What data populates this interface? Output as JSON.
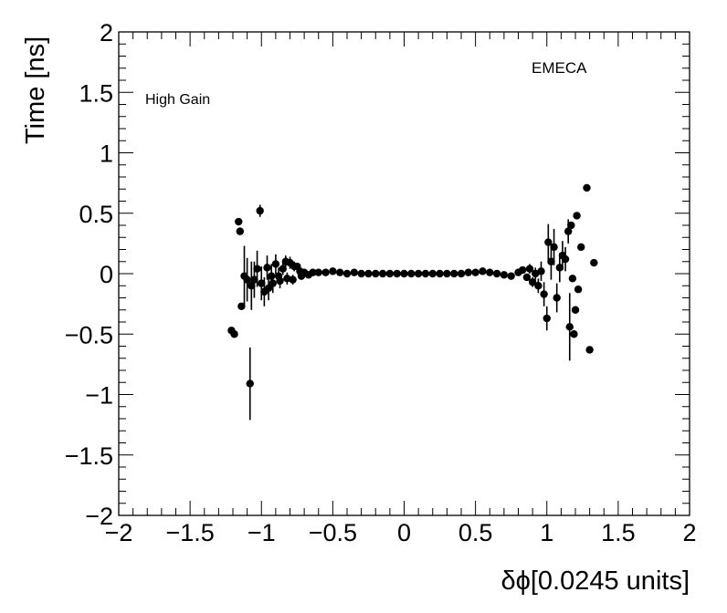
{
  "chart_data": {
    "type": "scatter",
    "title": "",
    "xlabel": "δϕ[0.0245 units]",
    "ylabel": "Time [ns]",
    "xlim": [
      -2,
      2
    ],
    "ylim": [
      -2,
      2
    ],
    "xticks": [
      -2,
      -1.5,
      -1,
      -0.5,
      0,
      0.5,
      1,
      1.5,
      2
    ],
    "yticks": [
      -2,
      -1.5,
      -1,
      -0.5,
      0,
      0.5,
      1,
      1.5,
      2
    ],
    "xtick_labels": [
      "−2",
      "−1.5",
      "−1",
      "−0.5",
      "0",
      "0.5",
      "1",
      "1.5",
      "2"
    ],
    "ytick_labels": [
      "−2",
      "−1.5",
      "−1",
      "−0.5",
      "0",
      "0.5",
      "1",
      "1.5",
      "2"
    ],
    "grid": false,
    "marker_color": "#000000",
    "annotations": {
      "label_left": "High Gain",
      "label_right": "EMECA"
    },
    "points": [
      {
        "x": -1.21,
        "y": -0.47,
        "err": 0.0
      },
      {
        "x": -1.19,
        "y": -0.5,
        "err": 0.0
      },
      {
        "x": -1.16,
        "y": 0.43,
        "err": 0.0
      },
      {
        "x": -1.15,
        "y": 0.35,
        "err": 0.0
      },
      {
        "x": -1.14,
        "y": -0.27,
        "err": 0.0
      },
      {
        "x": -1.12,
        "y": -0.02,
        "err": 0.25
      },
      {
        "x": -1.1,
        "y": -0.05,
        "err": 0.18
      },
      {
        "x": -1.08,
        "y": -0.91,
        "err": 0.3
      },
      {
        "x": -1.07,
        "y": -0.1,
        "err": 0.2
      },
      {
        "x": -1.05,
        "y": -0.05,
        "err": 0.15
      },
      {
        "x": -1.03,
        "y": 0.04,
        "err": 0.15
      },
      {
        "x": -1.01,
        "y": 0.52,
        "err": 0.05
      },
      {
        "x": -1.0,
        "y": -0.08,
        "err": 0.14
      },
      {
        "x": -0.98,
        "y": -0.15,
        "err": 0.12
      },
      {
        "x": -0.96,
        "y": 0.05,
        "err": 0.1
      },
      {
        "x": -0.95,
        "y": -0.12,
        "err": 0.1
      },
      {
        "x": -0.93,
        "y": -0.02,
        "err": 0.1
      },
      {
        "x": -0.92,
        "y": -0.08,
        "err": 0.08
      },
      {
        "x": -0.9,
        "y": 0.08,
        "err": 0.08
      },
      {
        "x": -0.88,
        "y": -0.02,
        "err": 0.07
      },
      {
        "x": -0.87,
        "y": -0.06,
        "err": 0.06
      },
      {
        "x": -0.85,
        "y": 0.04,
        "err": 0.05
      },
      {
        "x": -0.83,
        "y": 0.1,
        "err": 0.05
      },
      {
        "x": -0.82,
        "y": -0.04,
        "err": 0.05
      },
      {
        "x": -0.8,
        "y": 0.09,
        "err": 0.05
      },
      {
        "x": -0.78,
        "y": -0.05,
        "err": 0.04
      },
      {
        "x": -0.77,
        "y": 0.06,
        "err": 0.04
      },
      {
        "x": -0.75,
        "y": 0.06,
        "err": 0.03
      },
      {
        "x": -0.73,
        "y": 0.02,
        "err": 0.03
      },
      {
        "x": -0.72,
        "y": -0.02,
        "err": 0.03
      },
      {
        "x": -0.7,
        "y": 0.01,
        "err": 0.02
      },
      {
        "x": -0.67,
        "y": -0.01,
        "err": 0.02
      },
      {
        "x": -0.64,
        "y": 0.01,
        "err": 0.02
      },
      {
        "x": -0.6,
        "y": 0.01,
        "err": 0.01
      },
      {
        "x": -0.55,
        "y": 0.01,
        "err": 0.01
      },
      {
        "x": -0.5,
        "y": 0.02,
        "err": 0.01
      },
      {
        "x": -0.45,
        "y": 0.01,
        "err": 0.0
      },
      {
        "x": -0.4,
        "y": 0.0,
        "err": 0.0
      },
      {
        "x": -0.35,
        "y": 0.01,
        "err": 0.0
      },
      {
        "x": -0.3,
        "y": 0.0,
        "err": 0.0
      },
      {
        "x": -0.25,
        "y": 0.0,
        "err": 0.0
      },
      {
        "x": -0.2,
        "y": 0.0,
        "err": 0.0
      },
      {
        "x": -0.15,
        "y": 0.0,
        "err": 0.0
      },
      {
        "x": -0.1,
        "y": 0.0,
        "err": 0.0
      },
      {
        "x": -0.05,
        "y": 0.0,
        "err": 0.0
      },
      {
        "x": 0.0,
        "y": 0.0,
        "err": 0.0
      },
      {
        "x": 0.05,
        "y": 0.0,
        "err": 0.0
      },
      {
        "x": 0.1,
        "y": 0.0,
        "err": 0.0
      },
      {
        "x": 0.15,
        "y": 0.0,
        "err": 0.0
      },
      {
        "x": 0.2,
        "y": 0.0,
        "err": 0.0
      },
      {
        "x": 0.25,
        "y": 0.0,
        "err": 0.0
      },
      {
        "x": 0.3,
        "y": 0.0,
        "err": 0.0
      },
      {
        "x": 0.35,
        "y": 0.0,
        "err": 0.0
      },
      {
        "x": 0.4,
        "y": 0.0,
        "err": 0.0
      },
      {
        "x": 0.45,
        "y": 0.01,
        "err": 0.0
      },
      {
        "x": 0.5,
        "y": 0.01,
        "err": 0.0
      },
      {
        "x": 0.55,
        "y": 0.02,
        "err": 0.01
      },
      {
        "x": 0.6,
        "y": 0.01,
        "err": 0.01
      },
      {
        "x": 0.65,
        "y": 0.0,
        "err": 0.01
      },
      {
        "x": 0.7,
        "y": -0.01,
        "err": 0.01
      },
      {
        "x": 0.75,
        "y": -0.02,
        "err": 0.02
      },
      {
        "x": 0.8,
        "y": 0.01,
        "err": 0.02
      },
      {
        "x": 0.83,
        "y": 0.03,
        "err": 0.03
      },
      {
        "x": 0.86,
        "y": -0.03,
        "err": 0.03
      },
      {
        "x": 0.88,
        "y": 0.04,
        "err": 0.04
      },
      {
        "x": 0.9,
        "y": -0.07,
        "err": 0.04
      },
      {
        "x": 0.92,
        "y": 0.0,
        "err": 0.05
      },
      {
        "x": 0.94,
        "y": -0.1,
        "err": 0.06
      },
      {
        "x": 0.96,
        "y": 0.02,
        "err": 0.08
      },
      {
        "x": 0.98,
        "y": -0.17,
        "err": 0.1
      },
      {
        "x": 1.0,
        "y": -0.37,
        "err": 0.1
      },
      {
        "x": 1.01,
        "y": 0.26,
        "err": 0.15
      },
      {
        "x": 1.03,
        "y": 0.1,
        "err": 0.15
      },
      {
        "x": 1.05,
        "y": 0.22,
        "err": 0.15
      },
      {
        "x": 1.07,
        "y": -0.2,
        "err": 0.12
      },
      {
        "x": 1.09,
        "y": 0.05,
        "err": 0.12
      },
      {
        "x": 1.11,
        "y": 0.15,
        "err": 0.12
      },
      {
        "x": 1.13,
        "y": 0.12,
        "err": 0.1
      },
      {
        "x": 1.15,
        "y": 0.35,
        "err": 0.1
      },
      {
        "x": 1.16,
        "y": -0.44,
        "err": 0.28
      },
      {
        "x": 1.17,
        "y": 0.4,
        "err": 0.0
      },
      {
        "x": 1.18,
        "y": -0.04,
        "err": 0.0
      },
      {
        "x": 1.19,
        "y": -0.5,
        "err": 0.0
      },
      {
        "x": 1.2,
        "y": -0.3,
        "err": 0.0
      },
      {
        "x": 1.21,
        "y": 0.48,
        "err": 0.0
      },
      {
        "x": 1.22,
        "y": -0.13,
        "err": 0.0
      },
      {
        "x": 1.24,
        "y": 0.22,
        "err": 0.0
      },
      {
        "x": 1.28,
        "y": 0.71,
        "err": 0.0
      },
      {
        "x": 1.3,
        "y": -0.63,
        "err": 0.0
      },
      {
        "x": 1.33,
        "y": 0.09,
        "err": 0.0
      }
    ]
  }
}
